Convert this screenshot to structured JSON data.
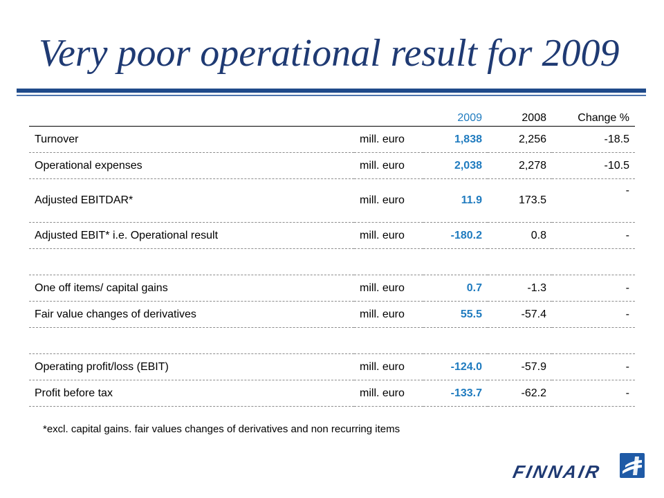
{
  "slide": {
    "title": "Very poor operational result for 2009",
    "footnote": "*excl. capital gains. fair values changes of derivatives and non recurring items"
  },
  "table": {
    "headers": [
      "2009",
      "2008",
      "Change %"
    ],
    "rows": [
      {
        "label": "Turnover",
        "unit": "mill. euro",
        "v2009": "1,838",
        "v2008": "2,256",
        "change": "-18.5"
      },
      {
        "label": "Operational expenses",
        "unit": "mill. euro",
        "v2009": "2,038",
        "v2008": "2,278",
        "change": "-10.5"
      },
      {
        "label": "Adjusted EBITDAR*",
        "unit": "mill. euro",
        "v2009": "11.9",
        "v2008": "173.5",
        "change": "-"
      },
      {
        "label": "Adjusted EBIT* i.e. Operational result",
        "unit": "mill. euro",
        "v2009": "-180.2",
        "v2008": "0.8",
        "change": "-"
      },
      {
        "label": "One off items/ capital gains",
        "unit": "mill. euro",
        "v2009": "0.7",
        "v2008": "-1.3",
        "change": "-"
      },
      {
        "label": "Fair value changes of derivatives",
        "unit": "mill. euro",
        "v2009": "55.5",
        "v2008": "-57.4",
        "change": "-"
      },
      {
        "label": "Operating profit/loss (EBIT)",
        "unit": "mill. euro",
        "v2009": "-124.0",
        "v2008": "-57.9",
        "change": "-"
      },
      {
        "label": "Profit before tax",
        "unit": "mill. euro",
        "v2009": "-133.7",
        "v2008": "-62.2",
        "change": "-"
      }
    ]
  },
  "logo": {
    "wordmark": "FINNAIR",
    "icon": "finnair-f-logo-icon"
  },
  "colors": {
    "title": "#1f3a73",
    "rule": "#1f4a8a",
    "highlight": "#1f7bbf"
  }
}
